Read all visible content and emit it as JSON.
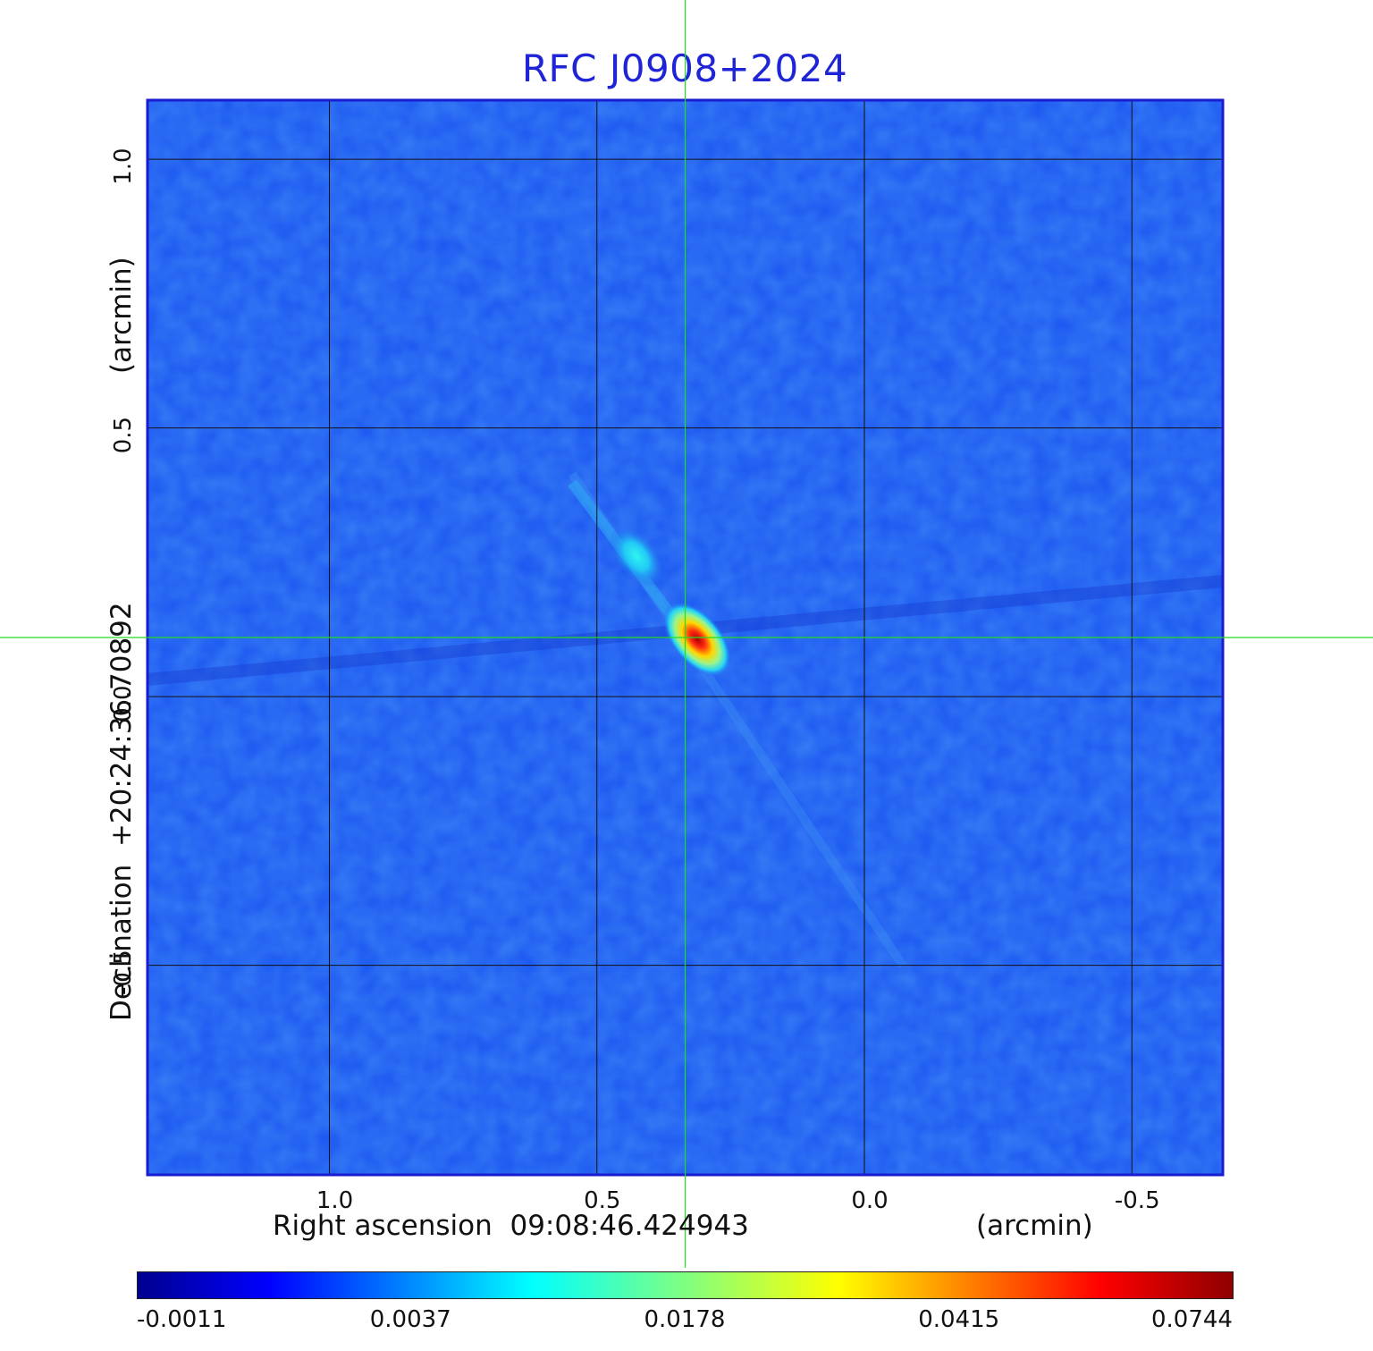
{
  "chart_data": {
    "type": "heatmap",
    "title": "RFC J0908+2024",
    "xlabel": "Right ascension  09:08:46.424943",
    "xunit": "(arcmin)",
    "ylabel": "Declination  +20:24:36.70892",
    "yunit": "(arcmin)",
    "xticks": [
      "1.0",
      "0.5",
      "0.0",
      "-0.5"
    ],
    "yticks": [
      "1.0",
      "0.5",
      "0.0",
      "-0.5"
    ],
    "xlim": [
      1.34,
      -0.67
    ],
    "ylim": [
      -0.89,
      1.11
    ],
    "grid": true,
    "crosshair": {
      "x": 0.335,
      "y": 0.11
    },
    "colormap": "jet",
    "colorbar_ticks": [
      "-0.0011",
      "0.0037",
      "0.0178",
      "0.0415",
      "0.0744"
    ],
    "features": [
      {
        "kind": "peak",
        "x": 0.32,
        "y": 0.1,
        "value": 0.0744
      },
      {
        "kind": "jet-knot",
        "x": 0.43,
        "y": 0.26,
        "value": 0.006
      }
    ]
  },
  "colors": {
    "title": "#1f25d6",
    "crosshair": "#22dd22",
    "frame": "#1a1ad0",
    "background_map": "#1a55f0"
  }
}
